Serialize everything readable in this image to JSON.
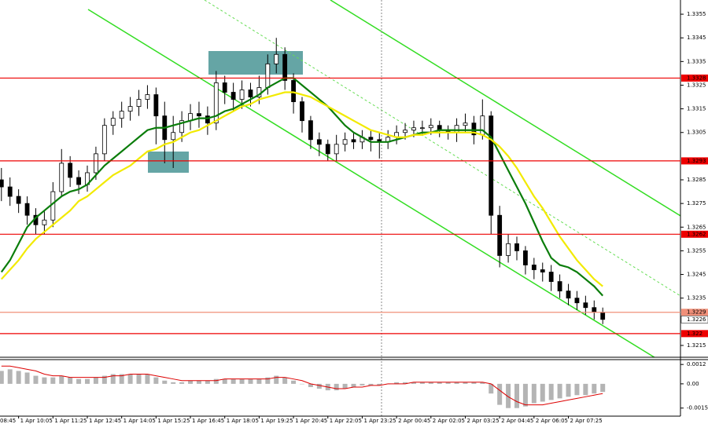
{
  "chart_data": [
    {
      "type": "candlestick",
      "categories": [
        null,
        null,
        "1 Apr 10:05",
        null,
        null,
        null,
        "1 Apr 11:25",
        null,
        null,
        null,
        "1 Apr 12:45",
        null,
        null,
        null,
        "1 Apr 14:05",
        null,
        null,
        null,
        "1 Apr 15:25",
        null,
        null,
        null,
        "1 Apr 16:45",
        null,
        null,
        null,
        "1 Apr 18:05",
        null,
        null,
        null,
        "1 Apr 19:25",
        null,
        null,
        null,
        "1 Apr 20:45",
        null,
        null,
        null,
        "1 Apr 22:05",
        null,
        null,
        null,
        "1 Apr 23:25",
        null,
        null,
        null,
        "2 Apr 00:45",
        null,
        null,
        null,
        "2 Apr 02:05",
        null,
        null,
        null,
        "2 Apr 03:25",
        null,
        null,
        null,
        "2 Apr 04:45",
        null,
        null,
        null,
        "2 Apr 06:05",
        null,
        null,
        null,
        "2 Apr 07:25",
        null,
        null,
        null,
        null
      ],
      "first_x_label": "08:45",
      "open": [
        1.3285,
        1.3282,
        1.3278,
        1.3275,
        1.327,
        1.3266,
        1.3268,
        1.328,
        1.3292,
        1.3286,
        1.3283,
        1.3288,
        1.3296,
        1.3308,
        1.3311,
        1.3314,
        1.3316,
        1.3319,
        1.3321,
        1.3312,
        1.3302,
        1.3305,
        1.331,
        1.3313,
        1.3312,
        1.3309,
        1.3326,
        1.3322,
        1.3319,
        1.3323,
        1.332,
        1.3324,
        1.3334,
        1.3338,
        1.3327,
        1.3318,
        1.331,
        1.3302,
        1.33,
        1.3296,
        1.33,
        1.3302,
        1.3301,
        1.3303,
        1.3302,
        1.3301,
        1.3303,
        1.3305,
        1.3306,
        1.3307,
        1.3307,
        1.3308,
        1.3306,
        1.3305,
        1.3308,
        1.3309,
        1.3304,
        1.3312,
        1.327,
        1.3253,
        1.3258,
        1.3255,
        1.3249,
        1.3247,
        1.3246,
        1.3242,
        1.3238,
        1.3235,
        1.3233,
        1.3231,
        1.3229
      ],
      "high": [
        1.329,
        1.3286,
        1.3281,
        1.3278,
        1.3273,
        1.3272,
        1.3284,
        1.3298,
        1.3295,
        1.3289,
        1.3291,
        1.3299,
        1.3311,
        1.3314,
        1.3318,
        1.332,
        1.3323,
        1.3325,
        1.3324,
        1.3318,
        1.3312,
        1.3314,
        1.3317,
        1.3318,
        1.3316,
        1.3331,
        1.3329,
        1.3326,
        1.3327,
        1.3326,
        1.3329,
        1.3338,
        1.3345,
        1.3341,
        1.333,
        1.332,
        1.3312,
        1.3305,
        1.3302,
        1.3304,
        1.3305,
        1.3305,
        1.3306,
        1.3306,
        1.3305,
        1.3306,
        1.3308,
        1.3309,
        1.331,
        1.331,
        1.3311,
        1.331,
        1.3308,
        1.3311,
        1.3313,
        1.3312,
        1.3319,
        1.3314,
        1.3274,
        1.3262,
        1.3261,
        1.3257,
        1.3252,
        1.325,
        1.3249,
        1.3245,
        1.3241,
        1.3238,
        1.3236,
        1.3234,
        1.3231
      ],
      "low": [
        1.3276,
        1.3274,
        1.3271,
        1.3266,
        1.3262,
        1.3262,
        1.3265,
        1.3278,
        1.3282,
        1.3279,
        1.328,
        1.3285,
        1.3293,
        1.3304,
        1.3307,
        1.331,
        1.3312,
        1.3315,
        1.33,
        1.3292,
        1.329,
        1.3301,
        1.3306,
        1.3307,
        1.3304,
        1.3306,
        1.3317,
        1.3314,
        1.3315,
        1.3316,
        1.3317,
        1.3321,
        1.333,
        1.3323,
        1.3313,
        1.3305,
        1.3298,
        1.3295,
        1.3293,
        1.3293,
        1.3297,
        1.3298,
        1.3298,
        1.3297,
        1.3294,
        1.3298,
        1.33,
        1.3302,
        1.3303,
        1.3304,
        1.3304,
        1.3303,
        1.3302,
        1.3301,
        1.3305,
        1.33,
        1.3302,
        1.3262,
        1.3248,
        1.325,
        1.3251,
        1.3245,
        1.3243,
        1.3242,
        1.3238,
        1.3235,
        1.3232,
        1.323,
        1.3228,
        1.3226,
        1.3224
      ],
      "close": [
        1.3282,
        1.3278,
        1.3275,
        1.327,
        1.3266,
        1.3268,
        1.328,
        1.3292,
        1.3286,
        1.3283,
        1.3288,
        1.3296,
        1.3308,
        1.3311,
        1.3314,
        1.3316,
        1.3319,
        1.3321,
        1.3312,
        1.3302,
        1.3305,
        1.331,
        1.3313,
        1.3312,
        1.3309,
        1.3326,
        1.3322,
        1.3319,
        1.3323,
        1.332,
        1.3324,
        1.3334,
        1.3338,
        1.3327,
        1.3318,
        1.331,
        1.3302,
        1.33,
        1.3296,
        1.33,
        1.3302,
        1.3301,
        1.3303,
        1.3302,
        1.3301,
        1.3303,
        1.3305,
        1.3306,
        1.3307,
        1.3307,
        1.3308,
        1.3306,
        1.3305,
        1.3308,
        1.3309,
        1.3304,
        1.3312,
        1.327,
        1.3253,
        1.3258,
        1.3255,
        1.3249,
        1.3247,
        1.3246,
        1.3242,
        1.3238,
        1.3235,
        1.3233,
        1.3231,
        1.3229,
        1.3226
      ],
      "candle_color": "#000000",
      "series": [
        {
          "color": "#0b7d0b",
          "values": [
            1.3246,
            1.3251,
            1.3258,
            1.3265,
            1.3269,
            1.3272,
            1.3275,
            1.3278,
            1.328,
            1.3281,
            1.3283,
            1.3287,
            1.3291,
            1.3294,
            1.3297,
            1.33,
            1.3303,
            1.3306,
            1.3307,
            1.3307,
            1.3308,
            1.3309,
            1.331,
            1.3311,
            1.3311,
            1.3312,
            1.3314,
            1.3315,
            1.3317,
            1.3319,
            1.3321,
            1.3324,
            1.3326,
            1.3328,
            1.3328,
            1.3325,
            1.3322,
            1.3319,
            1.3316,
            1.3312,
            1.3308,
            1.3305,
            1.3303,
            1.3301,
            1.3301,
            1.3301,
            1.3302,
            1.3303,
            1.3304,
            1.3305,
            1.3305,
            1.3306,
            1.3306,
            1.3306,
            1.3306,
            1.3306,
            1.3306,
            1.3303,
            1.3296,
            1.3289,
            1.3282,
            1.3275,
            1.3267,
            1.3259,
            1.3252,
            1.3249,
            1.3248,
            1.3246,
            1.3243,
            1.324,
            1.3236
          ]
        },
        {
          "color": "#f2ea00",
          "values": [
            1.3243,
            1.3247,
            1.3251,
            1.3256,
            1.326,
            1.3263,
            1.3266,
            1.3269,
            1.3272,
            1.3276,
            1.3278,
            1.3281,
            1.3284,
            1.3287,
            1.3289,
            1.3291,
            1.3294,
            1.3297,
            1.3298,
            1.33,
            1.3301,
            1.3303,
            1.3305,
            1.3306,
            1.3308,
            1.331,
            1.3312,
            1.3314,
            1.3316,
            1.3317,
            1.3319,
            1.332,
            1.3321,
            1.3322,
            1.3322,
            1.3321,
            1.332,
            1.3318,
            1.3316,
            1.3314,
            1.3312,
            1.331,
            1.3308,
            1.3306,
            1.3305,
            1.3304,
            1.3303,
            1.3303,
            1.3304,
            1.3304,
            1.3305,
            1.3305,
            1.3305,
            1.3305,
            1.3305,
            1.3305,
            1.3304,
            1.3302,
            1.3299,
            1.3295,
            1.329,
            1.3284,
            1.3278,
            1.3273,
            1.3267,
            1.3261,
            1.3256,
            1.3251,
            1.3247,
            1.3243,
            1.324
          ]
        }
      ],
      "ylim": [
        1.321,
        1.3361
      ],
      "yticks": [
        1.3355,
        1.3345,
        1.3335,
        1.3325,
        1.3315,
        1.3305,
        1.3285,
        1.3275,
        1.3265,
        1.3255,
        1.3245,
        1.3235,
        1.3215
      ],
      "levels": [
        {
          "value": 1.3328,
          "color": "#ee0000"
        },
        {
          "value": 1.3293,
          "color": "#ee0000"
        },
        {
          "value": 1.3262,
          "color": "#ee0000"
        },
        {
          "value": 1.3229,
          "color": "#f0907a"
        },
        {
          "value": 1.322,
          "color": "#ee0000"
        }
      ],
      "bid": 1.3226
    },
    {
      "type": "macd",
      "values": [
        0.0008,
        0.0009,
        0.0008,
        0.0007,
        0.0005,
        0.0004,
        0.0004,
        0.0005,
        0.0004,
        0.0003,
        0.0003,
        0.0004,
        0.0005,
        0.0006,
        0.0006,
        0.0006,
        0.0006,
        0.0006,
        0.0004,
        0.0002,
        0.0001,
        0.0001,
        0.0002,
        0.0002,
        0.0002,
        0.0003,
        0.0003,
        0.0003,
        0.0003,
        0.0003,
        0.0003,
        0.0004,
        0.0005,
        0.0004,
        0.0002,
        0,
        -0.0002,
        -0.0003,
        -0.0004,
        -0.0004,
        -0.0003,
        -0.0002,
        -0.0001,
        -0.0001,
        -0.0001,
        0,
        0.0001,
        0.0001,
        0.0001,
        0.0001,
        0.0001,
        0.0001,
        0.0001,
        0.0001,
        0.0001,
        0.0001,
        0.0001,
        -0.0006,
        -0.0013,
        -0.0015,
        -0.0015,
        -0.0014,
        -0.0012,
        -0.0011,
        -0.001,
        -0.0009,
        -0.0008,
        -0.0007,
        -0.0007,
        -0.0006,
        -0.0005
      ],
      "color": "#b4b4b4",
      "signal": {
        "color": "#dd0000",
        "values": [
          0.0011,
          0.0011,
          0.001,
          0.0009,
          0.0008,
          0.0006,
          0.0005,
          0.0005,
          0.0004,
          0.0004,
          0.0004,
          0.0004,
          0.0004,
          0.0005,
          0.0005,
          0.0006,
          0.0006,
          0.0006,
          0.0005,
          0.0004,
          0.0003,
          0.0002,
          0.0002,
          0.0002,
          0.0002,
          0.0002,
          0.0003,
          0.0003,
          0.0003,
          0.0003,
          0.0003,
          0.0003,
          0.0004,
          0.0004,
          0.0003,
          0.0002,
          0,
          -0.0001,
          -0.0002,
          -0.0003,
          -0.0003,
          -0.0002,
          -0.0002,
          -0.0001,
          -0.0001,
          0,
          0,
          0,
          0.0001,
          0.0001,
          0.0001,
          0.0001,
          0.0001,
          0.0001,
          0.0001,
          0.0001,
          0.0001,
          0,
          -0.0004,
          -0.0008,
          -0.0011,
          -0.0013,
          -0.0013,
          -0.0013,
          -0.0012,
          -0.0011,
          -0.001,
          -0.0009,
          -0.0008,
          -0.0007,
          -0.0006
        ]
      },
      "ylim": [
        -0.002,
        0.0015
      ],
      "yticks": [
        0.0012,
        {
          "value": 0,
          "label": "0.00"
        },
        -0.0015
      ]
    }
  ]
}
